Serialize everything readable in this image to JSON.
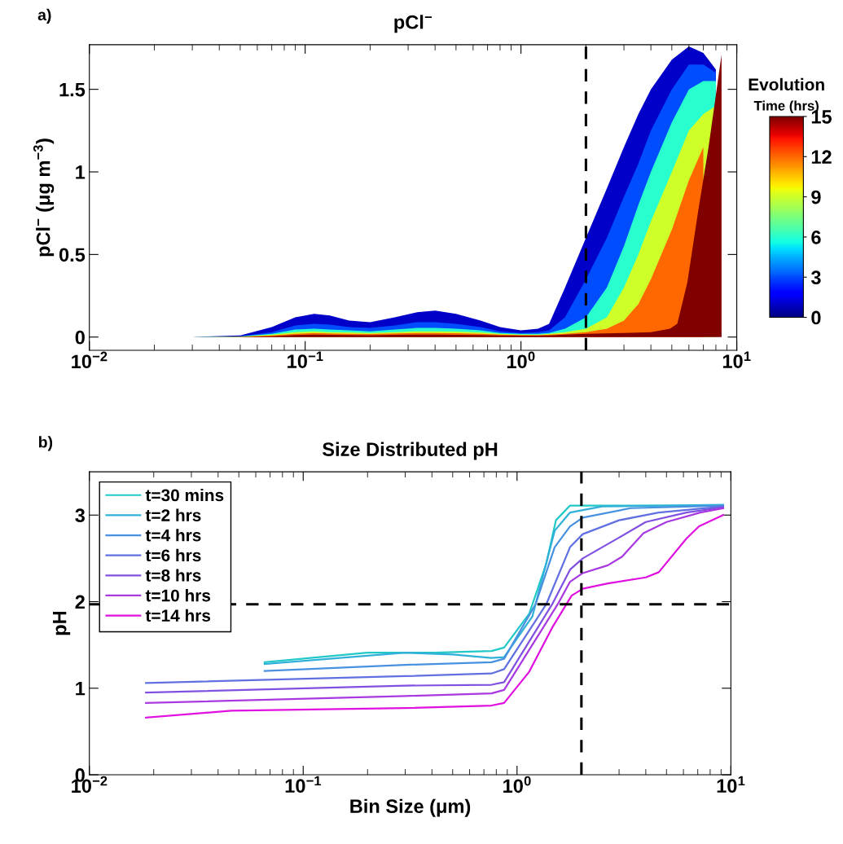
{
  "chart_data": [
    {
      "type": "area",
      "title": "pCl$^{−}$",
      "ylabel": "pCl$^{−}$ (μg m$^{−3}$)",
      "log": "x",
      "xlim": [
        0.01,
        10
      ],
      "xticks": [
        {
          "value": 0.01,
          "label": "10$^{−2}$"
        },
        {
          "value": 0.1,
          "label": "10$^{−1}$"
        },
        {
          "value": 1,
          "label": "10$^{0}$"
        },
        {
          "value": 10,
          "label": "10$^{1}$"
        }
      ],
      "ylim": [
        -0.08,
        1.77
      ],
      "yticks": [
        0,
        0.5,
        1,
        1.5
      ],
      "clabel": "Evolution Time (hrs)",
      "clim": [
        0,
        15
      ],
      "cticks": [
        0,
        3,
        6,
        9,
        12,
        15
      ],
      "ref_lines": [
        {
          "axis": "x",
          "value": 2,
          "color": "#000000",
          "line_style": "dashed"
        }
      ],
      "annotations": [
        "a)"
      ],
      "series": [
        {
          "color": "#0000c8",
          "x": [
            0.01,
            0.03,
            0.05,
            0.07,
            0.09,
            0.11,
            0.13,
            0.16,
            0.2,
            0.26,
            0.33,
            0.4,
            0.5,
            0.65,
            0.8,
            1.0,
            1.2,
            1.35,
            1.6,
            2,
            2.5,
            3,
            3.5,
            4,
            5,
            6,
            7,
            8
          ],
          "values": [
            0,
            0,
            0.01,
            0.06,
            0.12,
            0.14,
            0.13,
            0.1,
            0.09,
            0.12,
            0.15,
            0.16,
            0.14,
            0.1,
            0.06,
            0.04,
            0.05,
            0.08,
            0.3,
            0.6,
            0.9,
            1.15,
            1.35,
            1.5,
            1.68,
            1.76,
            1.72,
            1.62
          ]
        },
        {
          "color": "#004cff",
          "x": [
            0.01,
            0.03,
            0.05,
            0.07,
            0.09,
            0.11,
            0.13,
            0.16,
            0.2,
            0.26,
            0.33,
            0.4,
            0.5,
            0.65,
            0.8,
            1.0,
            1.2,
            1.35,
            1.6,
            2,
            2.5,
            3,
            3.5,
            4,
            5,
            6,
            7,
            8
          ],
          "values": [
            0,
            0,
            0.005,
            0.03,
            0.07,
            0.08,
            0.075,
            0.06,
            0.055,
            0.07,
            0.09,
            0.09,
            0.08,
            0.06,
            0.035,
            0.025,
            0.03,
            0.04,
            0.12,
            0.35,
            0.6,
            0.85,
            1.05,
            1.25,
            1.5,
            1.65,
            1.65,
            1.6
          ]
        },
        {
          "color": "#29ffce",
          "x": [
            0.01,
            0.03,
            0.05,
            0.07,
            0.09,
            0.11,
            0.13,
            0.16,
            0.2,
            0.26,
            0.33,
            0.4,
            0.5,
            0.65,
            0.8,
            1.0,
            1.2,
            1.35,
            1.6,
            2,
            2.5,
            3,
            3.5,
            4,
            5,
            6,
            7,
            8
          ],
          "values": [
            0,
            0,
            0.003,
            0.02,
            0.045,
            0.05,
            0.045,
            0.04,
            0.035,
            0.045,
            0.055,
            0.055,
            0.05,
            0.04,
            0.025,
            0.02,
            0.02,
            0.025,
            0.05,
            0.12,
            0.3,
            0.55,
            0.8,
            1.0,
            1.3,
            1.5,
            1.55,
            1.55
          ]
        },
        {
          "color": "#ceff29",
          "x": [
            0.01,
            0.03,
            0.05,
            0.07,
            0.09,
            0.11,
            0.13,
            0.16,
            0.2,
            0.26,
            0.33,
            0.4,
            0.5,
            0.65,
            0.8,
            1.0,
            1.2,
            1.35,
            1.6,
            2,
            2.5,
            3,
            3.5,
            4,
            5,
            6,
            7,
            8
          ],
          "values": [
            0,
            0,
            0.002,
            0.015,
            0.03,
            0.035,
            0.03,
            0.028,
            0.025,
            0.03,
            0.035,
            0.035,
            0.033,
            0.028,
            0.02,
            0.015,
            0.015,
            0.02,
            0.03,
            0.05,
            0.12,
            0.3,
            0.5,
            0.7,
            1.0,
            1.25,
            1.35,
            1.4
          ]
        },
        {
          "color": "#ff6800",
          "x": [
            0.01,
            0.03,
            0.05,
            0.07,
            0.09,
            0.11,
            0.13,
            0.16,
            0.2,
            0.26,
            0.33,
            0.4,
            0.5,
            0.65,
            0.8,
            1.0,
            1.2,
            1.35,
            1.6,
            2,
            2.5,
            3,
            3.5,
            4,
            5,
            6,
            7
          ],
          "values": [
            0,
            0,
            0.001,
            0.01,
            0.02,
            0.025,
            0.022,
            0.02,
            0.018,
            0.022,
            0.025,
            0.025,
            0.023,
            0.02,
            0.015,
            0.012,
            0.012,
            0.015,
            0.02,
            0.03,
            0.05,
            0.1,
            0.2,
            0.35,
            0.65,
            0.95,
            1.15
          ]
        },
        {
          "color": "#800000",
          "x": [
            0.01,
            0.03,
            0.05,
            0.07,
            0.09,
            0.11,
            0.13,
            0.16,
            0.2,
            0.26,
            0.33,
            0.4,
            0.5,
            0.65,
            0.8,
            1.0,
            1.2,
            1.35,
            1.6,
            2,
            3,
            4,
            4.9,
            5.3,
            5.9,
            6.6,
            7.4,
            8.5
          ],
          "values": [
            0,
            0,
            0.001,
            0.005,
            0.012,
            0.015,
            0.013,
            0.012,
            0.011,
            0.013,
            0.015,
            0.015,
            0.014,
            0.012,
            0.01,
            0.008,
            0.008,
            0.01,
            0.015,
            0.02,
            0.025,
            0.03,
            0.05,
            0.08,
            0.33,
            0.75,
            1.15,
            1.71
          ]
        }
      ]
    },
    {
      "type": "line",
      "title": "Size Distributed pH",
      "xlabel": "Bin Size (μm)",
      "ylabel": "pH",
      "log": "x",
      "xlim": [
        0.01,
        10
      ],
      "xticks": [
        {
          "value": 0.01,
          "label": "10$^{−2}$"
        },
        {
          "value": 0.1,
          "label": "10$^{−1}$"
        },
        {
          "value": 1,
          "label": "10$^{0}$"
        },
        {
          "value": 10,
          "label": "10$^{1}$"
        }
      ],
      "ylim": [
        0,
        3.5
      ],
      "yticks": [
        0,
        1,
        2,
        3
      ],
      "legend": "top left",
      "ref_lines": [
        {
          "axis": "x",
          "value": 2,
          "color": "#000000",
          "line_style": "dashed"
        },
        {
          "axis": "y",
          "value": 1.97,
          "color": "#000000",
          "line_style": "dashed"
        }
      ],
      "annotations": [
        "b)"
      ],
      "series": [
        {
          "name": "t=30 mins",
          "color": "#20c8c8",
          "x": [
            0.066,
            0.2,
            0.41,
            0.76,
            0.87,
            1.14,
            1.37,
            1.52,
            1.77,
            9.2
          ],
          "values": [
            1.3,
            1.41,
            1.41,
            1.43,
            1.47,
            1.86,
            2.44,
            2.94,
            3.11,
            3.11
          ]
        },
        {
          "name": "t=2 hrs",
          "color": "#30b0d8",
          "x": [
            0.066,
            0.3,
            0.5,
            0.76,
            0.87,
            1.18,
            1.5,
            1.77,
            2.5,
            9.2
          ],
          "values": [
            1.28,
            1.41,
            1.39,
            1.35,
            1.36,
            1.83,
            2.82,
            3.03,
            3.1,
            3.12
          ]
        },
        {
          "name": "t=4 hrs",
          "color": "#4890e0",
          "x": [
            0.066,
            0.3,
            0.76,
            0.87,
            1.22,
            1.5,
            1.77,
            2.03,
            3.4,
            9.2
          ],
          "values": [
            1.2,
            1.27,
            1.3,
            1.34,
            1.97,
            2.63,
            2.87,
            2.97,
            3.08,
            3.11
          ]
        },
        {
          "name": "t=6 hrs",
          "color": "#6070e0",
          "x": [
            0.0184,
            0.3,
            0.76,
            0.87,
            1.37,
            1.77,
            2.03,
            3.0,
            4.6,
            9.2
          ],
          "values": [
            1.06,
            1.14,
            1.17,
            1.22,
            1.97,
            2.63,
            2.78,
            2.94,
            3.03,
            3.1
          ]
        },
        {
          "name": "t=8 hrs",
          "color": "#8050e0",
          "x": [
            0.0184,
            0.3,
            0.76,
            0.87,
            1.46,
            1.77,
            2.03,
            3.0,
            4.0,
            6.2,
            9.2
          ],
          "values": [
            0.95,
            1.03,
            1.04,
            1.07,
            1.97,
            2.37,
            2.5,
            2.74,
            2.92,
            3.03,
            3.09
          ]
        },
        {
          "name": "t=10 hrs",
          "color": "#a838e0",
          "x": [
            0.0184,
            0.3,
            0.76,
            0.87,
            1.55,
            1.77,
            2.03,
            2.66,
            3.1,
            3.9,
            5.0,
            7.2,
            9.2
          ],
          "values": [
            0.83,
            0.91,
            0.94,
            0.98,
            1.97,
            2.23,
            2.33,
            2.42,
            2.52,
            2.79,
            2.92,
            3.03,
            3.08
          ]
        },
        {
          "name": "t=14 hrs",
          "color": "#e010e0",
          "x": [
            0.0184,
            0.046,
            0.3,
            0.76,
            0.87,
            1.14,
            1.46,
            1.8,
            2.03,
            2.66,
            4.0,
            4.6,
            6.2,
            7.1,
            9.2
          ],
          "values": [
            0.66,
            0.74,
            0.77,
            0.8,
            0.83,
            1.19,
            1.7,
            2.07,
            2.15,
            2.21,
            2.28,
            2.34,
            2.73,
            2.87,
            3.0
          ]
        }
      ]
    }
  ]
}
